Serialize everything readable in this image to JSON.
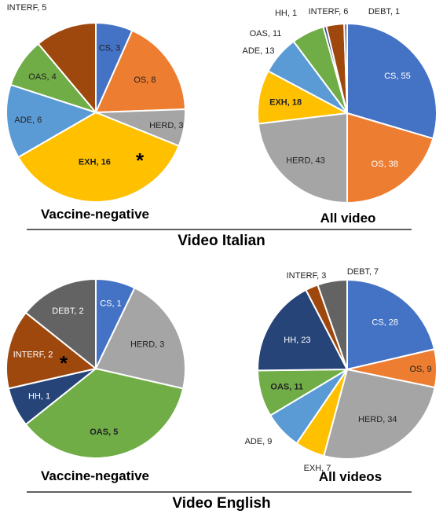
{
  "chart_data": [
    {
      "type": "pie",
      "caption": "Vaccine-negative",
      "group": "Video Italian",
      "star": "*",
      "slices": [
        {
          "label": "CS",
          "value": 3,
          "color": "#4472C4"
        },
        {
          "label": "OS",
          "value": 8,
          "color": "#ED7D31"
        },
        {
          "label": "HERD",
          "value": 3,
          "color": "#A5A5A5"
        },
        {
          "label": "EXH",
          "value": 16,
          "color": "#FFC000"
        },
        {
          "label": "ADE",
          "value": 6,
          "color": "#5B9BD5"
        },
        {
          "label": "OAS",
          "value": 4,
          "color": "#70AD47"
        },
        {
          "label": "INTERF",
          "value": 5,
          "color": "#9E480E"
        }
      ]
    },
    {
      "type": "pie",
      "caption": "All video",
      "group": "Video Italian",
      "slices": [
        {
          "label": "CS",
          "value": 55,
          "color": "#4472C4"
        },
        {
          "label": "OS",
          "value": 38,
          "color": "#ED7D31"
        },
        {
          "label": "HERD",
          "value": 43,
          "color": "#A5A5A5"
        },
        {
          "label": "EXH",
          "value": 18,
          "color": "#FFC000"
        },
        {
          "label": "ADE",
          "value": 13,
          "color": "#5B9BD5"
        },
        {
          "label": "OAS",
          "value": 11,
          "color": "#70AD47"
        },
        {
          "label": "HH",
          "value": 1,
          "color": "#264478"
        },
        {
          "label": "INTERF",
          "value": 6,
          "color": "#9E480E"
        },
        {
          "label": "DEBT",
          "value": 1,
          "color": "#636363"
        }
      ]
    },
    {
      "type": "pie",
      "caption": "Vaccine-negative",
      "group": "Video English",
      "star": "*",
      "slices": [
        {
          "label": "CS",
          "value": 1,
          "color": "#4472C4"
        },
        {
          "label": "HERD",
          "value": 3,
          "color": "#A5A5A5"
        },
        {
          "label": "OAS",
          "value": 5,
          "color": "#70AD47"
        },
        {
          "label": "HH",
          "value": 1,
          "color": "#264478"
        },
        {
          "label": "INTERF",
          "value": 2,
          "color": "#9E480E"
        },
        {
          "label": "DEBT",
          "value": 2,
          "color": "#636363"
        }
      ]
    },
    {
      "type": "pie",
      "caption": "All videos",
      "group": "Video English",
      "slices": [
        {
          "label": "CS",
          "value": 28,
          "color": "#4472C4"
        },
        {
          "label": "OS",
          "value": 9,
          "color": "#ED7D31"
        },
        {
          "label": "HERD",
          "value": 34,
          "color": "#A5A5A5"
        },
        {
          "label": "EXH",
          "value": 7,
          "color": "#FFC000"
        },
        {
          "label": "ADE",
          "value": 9,
          "color": "#5B9BD5"
        },
        {
          "label": "OAS",
          "value": 11,
          "color": "#70AD47"
        },
        {
          "label": "HH",
          "value": 23,
          "color": "#264478"
        },
        {
          "label": "INTERF",
          "value": 3,
          "color": "#9E480E"
        },
        {
          "label": "DEBT",
          "value": 7,
          "color": "#636363"
        }
      ]
    }
  ]
}
